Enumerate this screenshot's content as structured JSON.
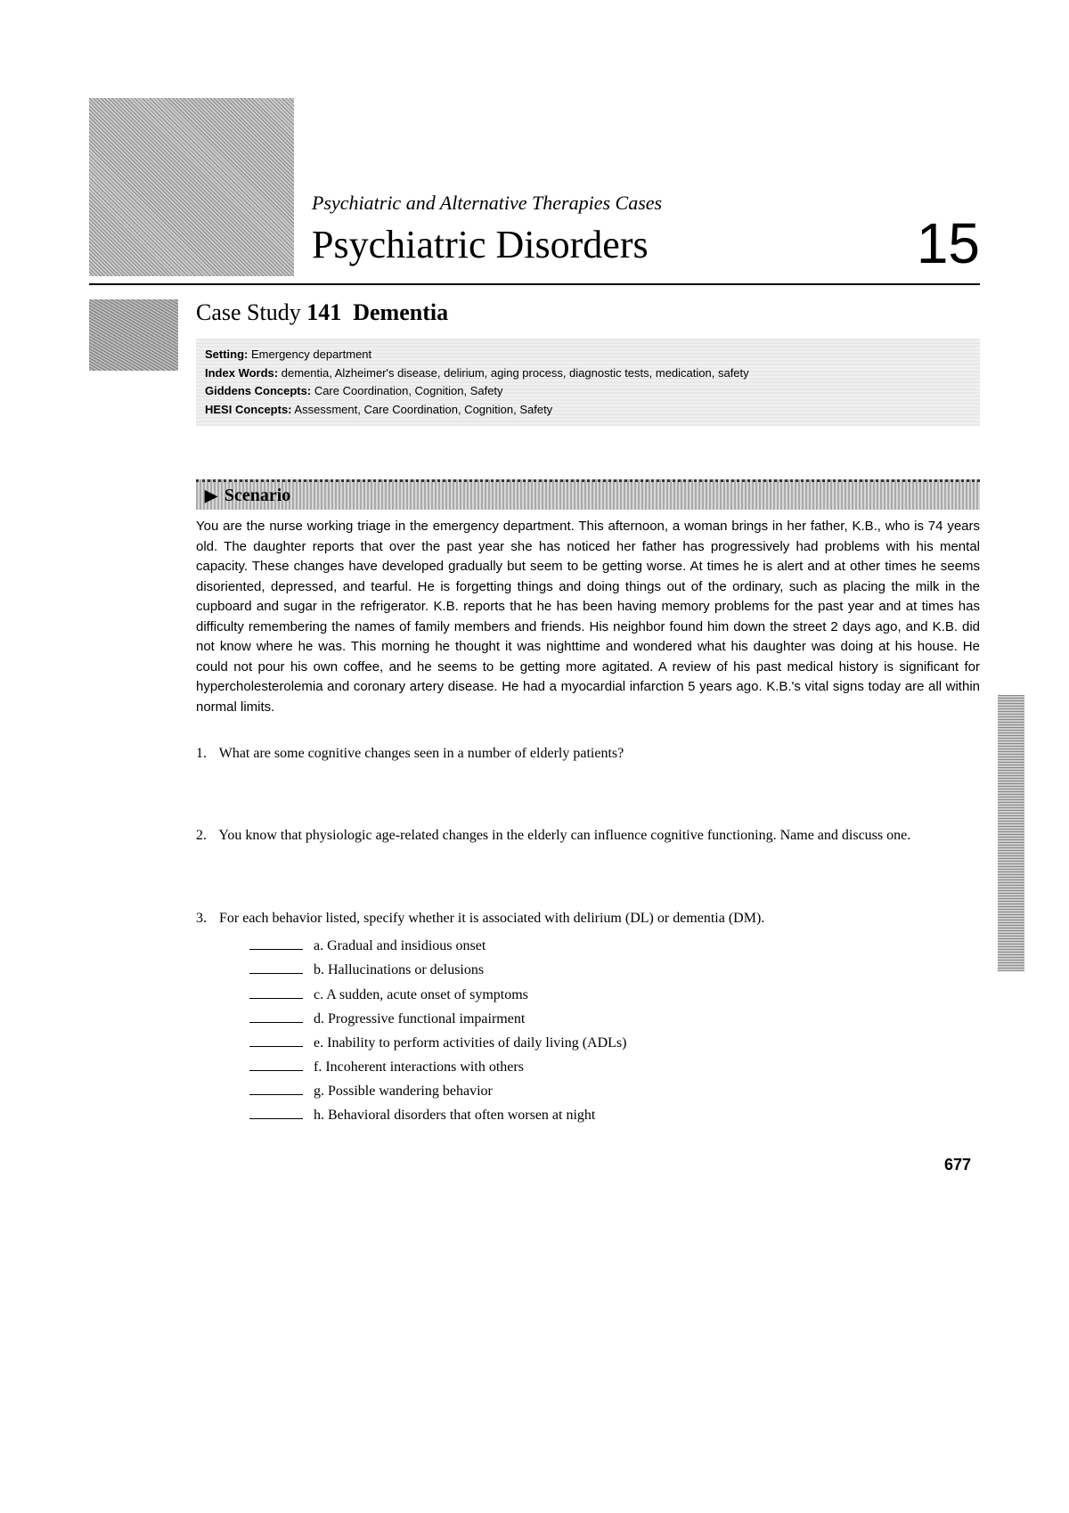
{
  "header": {
    "part_label": "Psychiatric and Alternative Therapies Cases",
    "chapter_title": "Psychiatric Disorders",
    "chapter_number": "15"
  },
  "case_study": {
    "prefix": "Case Study",
    "number": "141",
    "title": "Dementia",
    "meta": {
      "setting_label": "Setting:",
      "setting_value": "Emergency department",
      "index_label": "Index Words:",
      "index_value": "dementia, Alzheimer's disease, delirium, aging process, diagnostic tests, medication, safety",
      "giddens_label": "Giddens Concepts:",
      "giddens_value": "Care Coordination, Cognition, Safety",
      "hesi_label": "HESI Concepts:",
      "hesi_value": "Assessment, Care Coordination, Cognition, Safety"
    }
  },
  "scenario": {
    "heading": "Scenario",
    "text": "You are the nurse working triage in the emergency department. This afternoon, a woman brings in her father, K.B., who is 74 years old. The daughter reports that over the past year she has noticed her father has progressively had problems with his mental capacity. These changes have developed gradually but seem to be getting worse. At times he is alert and at other times he seems disoriented, depressed, and tearful. He is forgetting things and doing things out of the ordinary, such as placing the milk in the cupboard and sugar in the refrigerator. K.B. reports that he has been having memory problems for the past year and at times has difficulty remembering the names of family members and friends. His neighbor found him down the street 2 days ago, and K.B. did not know where he was. This morning he thought it was nighttime and wondered what his daughter was doing at his house. He could not pour his own coffee, and he seems to be getting more agitated. A review of his past medical history is significant for hypercholesterolemia and coronary artery disease. He had a myocardial infarction 5 years ago. K.B.'s vital signs today are all within normal limits."
  },
  "questions": {
    "q1": {
      "num": "1.",
      "text": "What are some cognitive changes seen in a number of elderly patients?"
    },
    "q2": {
      "num": "2.",
      "text": "You know that physiologic age-related changes in the elderly can influence cognitive functioning. Name and discuss one."
    },
    "q3": {
      "num": "3.",
      "text": "For each behavior listed, specify whether it is associated with delirium (DL) or dementia (DM).",
      "items": [
        {
          "letter": "a.",
          "text": "Gradual and insidious onset"
        },
        {
          "letter": "b.",
          "text": "Hallucinations or delusions"
        },
        {
          "letter": "c.",
          "text": "A sudden, acute onset of symptoms"
        },
        {
          "letter": "d.",
          "text": "Progressive functional impairment"
        },
        {
          "letter": "e.",
          "text": "Inability to perform activities of daily living (ADLs)"
        },
        {
          "letter": "f.",
          "text": "Incoherent interactions with others"
        },
        {
          "letter": "g.",
          "text": "Possible wandering behavior"
        },
        {
          "letter": "h.",
          "text": "Behavioral disorders that often worsen at night"
        }
      ]
    }
  },
  "page_number": "677"
}
